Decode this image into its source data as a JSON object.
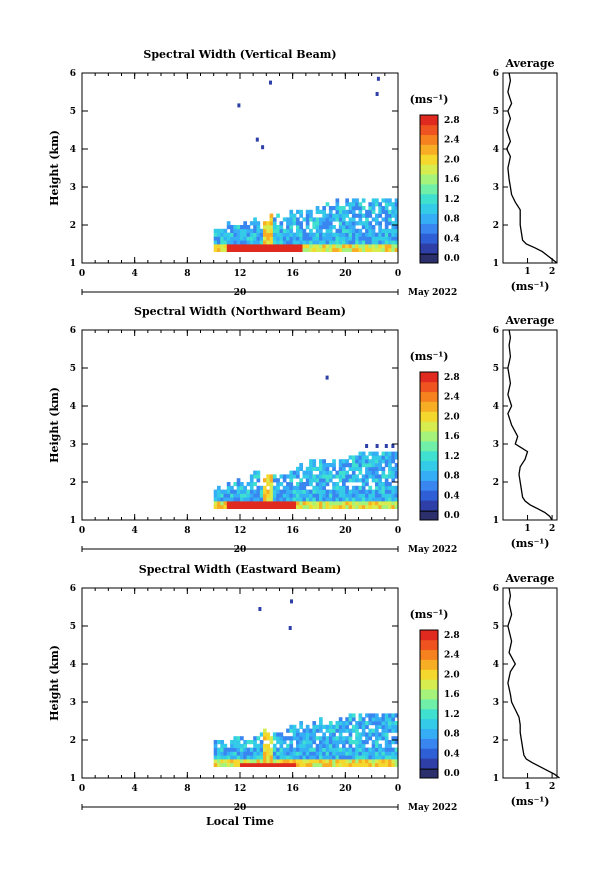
{
  "common": {
    "y_axis_label": "Height (km)",
    "unit_label": "(ms⁻¹)",
    "avg_title": "Average",
    "day_label": "20",
    "month_label": "May 2022",
    "x_axis_label": "Local Time",
    "colorbar_ticks": [
      "0.0",
      "0.4",
      "0.8",
      "1.2",
      "1.6",
      "2.0",
      "2.4",
      "2.8"
    ]
  },
  "chart_data": [
    {
      "type": "heatmap",
      "title": "Spectral Width (Vertical Beam)",
      "xlabel": "",
      "ylabel": "Height (km)",
      "x_ticks": [
        "0",
        "4",
        "8",
        "12",
        "16",
        "20",
        "0"
      ],
      "y_ticks": [
        "1",
        "2",
        "3",
        "4",
        "5",
        "6"
      ],
      "xlim": [
        0,
        24
      ],
      "ylim": [
        1,
        6
      ],
      "colorbar": {
        "label": "(ms⁻¹)",
        "range": [
          0,
          3.0
        ]
      },
      "data_region": {
        "x_start": 10.0,
        "x_end": 24.0,
        "height_min": 1.3,
        "height_max": 2.7
      },
      "sparse_points": [
        [
          11.8,
          5.2
        ],
        [
          13.2,
          4.3
        ],
        [
          13.6,
          4.1
        ],
        [
          14.2,
          5.8
        ],
        [
          22.3,
          5.5
        ],
        [
          22.4,
          5.9
        ]
      ],
      "strong_band": {
        "x_start": 11.0,
        "x_end": 16.5,
        "height": 1.35,
        "value": 2.9
      },
      "average": {
        "title": "Average",
        "xlabel": "(ms⁻¹)",
        "x_ticks": [
          "1",
          "2"
        ],
        "y_ticks": [
          "1",
          "2",
          "3",
          "4",
          "5",
          "6"
        ],
        "heights": [
          1.0,
          1.1,
          1.2,
          1.3,
          1.4,
          1.5,
          1.6,
          1.8,
          2.0,
          2.2,
          2.4,
          2.6,
          2.8,
          3.0,
          3.2,
          3.5,
          3.8,
          4.0,
          4.2,
          4.5,
          4.8,
          5.0,
          5.2,
          5.5,
          5.8,
          6.0
        ],
        "values": [
          2.2,
          2.0,
          1.8,
          1.6,
          1.3,
          0.95,
          0.8,
          0.75,
          0.7,
          0.7,
          0.7,
          0.5,
          0.35,
          0.3,
          0.25,
          0.2,
          0.3,
          0.15,
          0.3,
          0.15,
          0.3,
          0.2,
          0.35,
          0.2,
          0.3,
          0.25
        ]
      }
    },
    {
      "type": "heatmap",
      "title": "Spectral Width (Northward Beam)",
      "xlabel": "",
      "ylabel": "Height (km)",
      "x_ticks": [
        "0",
        "4",
        "8",
        "12",
        "16",
        "20",
        "0"
      ],
      "y_ticks": [
        "1",
        "2",
        "3",
        "4",
        "5",
        "6"
      ],
      "xlim": [
        0,
        24
      ],
      "ylim": [
        1,
        6
      ],
      "colorbar": {
        "label": "(ms⁻¹)",
        "range": [
          0,
          3.0
        ]
      },
      "data_region": {
        "x_start": 10.0,
        "x_end": 24.0,
        "height_min": 1.3,
        "height_max": 2.8
      },
      "sparse_points": [
        [
          18.5,
          4.8
        ],
        [
          21.5,
          3.0
        ],
        [
          22.3,
          3.0
        ],
        [
          23.0,
          3.0
        ],
        [
          23.5,
          3.0
        ]
      ],
      "strong_band": {
        "x_start": 11.0,
        "x_end": 16.0,
        "height": 1.35,
        "value": 2.9
      },
      "average": {
        "title": "Average",
        "xlabel": "(ms⁻¹)",
        "x_ticks": [
          "1",
          "2"
        ],
        "y_ticks": [
          "1",
          "2",
          "3",
          "4",
          "5",
          "6"
        ],
        "heights": [
          1.0,
          1.1,
          1.2,
          1.3,
          1.4,
          1.5,
          1.6,
          1.8,
          2.0,
          2.2,
          2.4,
          2.6,
          2.8,
          2.9,
          3.0,
          3.2,
          3.5,
          3.8,
          4.0,
          4.3,
          4.6,
          5.0,
          5.3,
          5.6,
          5.8,
          6.0
        ],
        "values": [
          2.0,
          1.9,
          1.7,
          1.4,
          1.1,
          0.9,
          0.8,
          0.75,
          0.7,
          0.65,
          0.7,
          0.9,
          1.0,
          0.75,
          0.5,
          0.6,
          0.35,
          0.2,
          0.35,
          0.2,
          0.3,
          0.2,
          0.3,
          0.25,
          0.3,
          0.25
        ]
      }
    },
    {
      "type": "heatmap",
      "title": "Spectral Width (Eastward Beam)",
      "xlabel": "Local Time",
      "ylabel": "Height (km)",
      "x_ticks": [
        "0",
        "4",
        "8",
        "12",
        "16",
        "20",
        "0"
      ],
      "y_ticks": [
        "1",
        "2",
        "3",
        "4",
        "5",
        "6"
      ],
      "xlim": [
        0,
        24
      ],
      "ylim": [
        1,
        6
      ],
      "colorbar": {
        "label": "(ms⁻¹)",
        "range": [
          0,
          3.0
        ]
      },
      "data_region": {
        "x_start": 10.0,
        "x_end": 24.0,
        "height_min": 1.3,
        "height_max": 2.7
      },
      "sparse_points": [
        [
          13.4,
          5.5
        ],
        [
          15.7,
          5.0
        ],
        [
          15.8,
          5.7
        ]
      ],
      "strong_band": {
        "x_start": 12.0,
        "x_end": 16.0,
        "height": 1.3,
        "value": 2.9
      },
      "average": {
        "title": "Average",
        "xlabel": "(ms⁻¹)",
        "x_ticks": [
          "1",
          "2"
        ],
        "y_ticks": [
          "1",
          "2",
          "3",
          "4",
          "5",
          "6"
        ],
        "heights": [
          1.0,
          1.1,
          1.2,
          1.3,
          1.4,
          1.5,
          1.6,
          1.8,
          2.0,
          2.2,
          2.4,
          2.6,
          2.8,
          3.0,
          3.2,
          3.5,
          3.8,
          4.0,
          4.3,
          4.6,
          5.0,
          5.3,
          5.6,
          5.8,
          6.0
        ],
        "values": [
          2.3,
          2.1,
          1.8,
          1.5,
          1.2,
          0.95,
          0.85,
          0.8,
          0.75,
          0.7,
          0.7,
          0.65,
          0.5,
          0.35,
          0.3,
          0.2,
          0.3,
          0.5,
          0.25,
          0.35,
          0.2,
          0.35,
          0.25,
          0.3,
          0.25
        ]
      }
    }
  ]
}
